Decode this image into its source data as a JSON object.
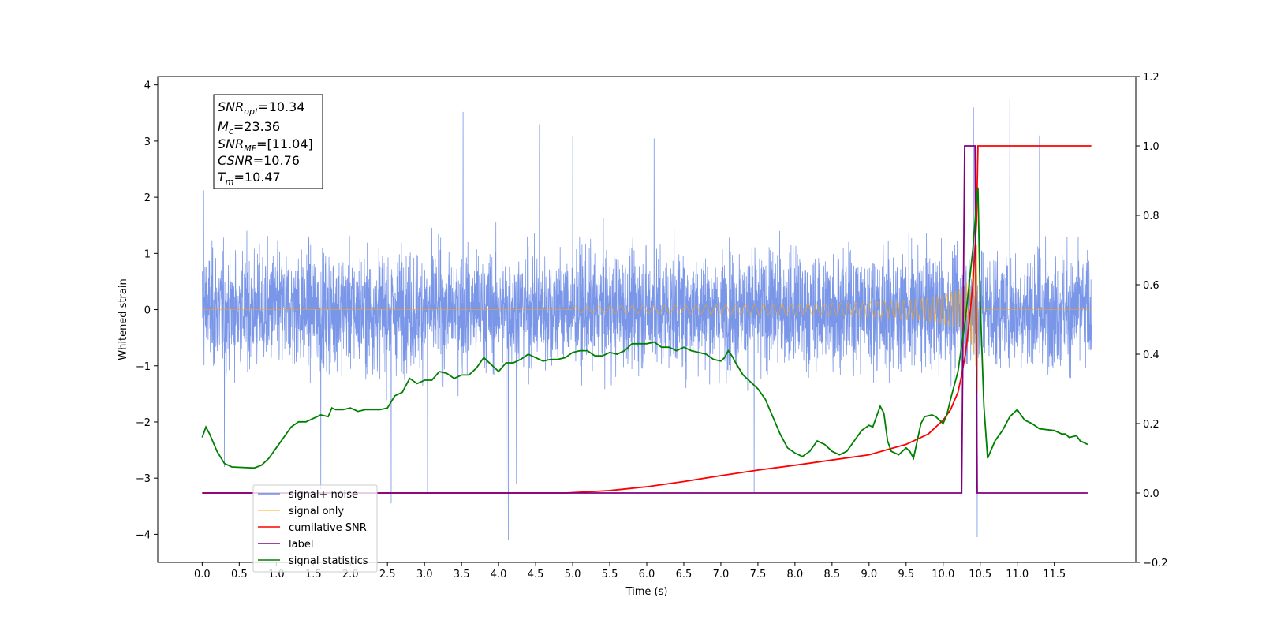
{
  "chart_data": {
    "type": "line",
    "xlabel": "Time (s)",
    "ylabel_left": "Whitened strain",
    "x_range": [
      -0.6,
      12.6
    ],
    "x_ticks": [
      0.0,
      0.5,
      1.0,
      1.5,
      2.0,
      2.5,
      3.0,
      3.5,
      4.0,
      4.5,
      5.0,
      5.5,
      6.0,
      6.5,
      7.0,
      7.5,
      8.0,
      8.5,
      9.0,
      9.5,
      10.0,
      10.5,
      11.0,
      11.5
    ],
    "x_tick_labels": [
      "0.0",
      "0.5",
      "1.0",
      "1.5",
      "2.0",
      "2.5",
      "3.0",
      "3.5",
      "4.0",
      "4.5",
      "5.0",
      "5.5",
      "6.0",
      "6.5",
      "7.0",
      "7.5",
      "8.0",
      "8.5",
      "9.0",
      "9.5",
      "10.0",
      "10.5",
      "11.0",
      "11.5"
    ],
    "y_left_range": [
      -4.5,
      4.15
    ],
    "y_left_ticks": [
      4,
      3,
      2,
      1,
      0,
      -1,
      -2,
      -3,
      -4
    ],
    "y_left_tick_labels": [
      "4",
      "3",
      "2",
      "1",
      "0",
      "−1",
      "−2",
      "−3",
      "−4"
    ],
    "y_right_range": [
      -0.2,
      1.2
    ],
    "y_right_ticks": [
      1.2,
      1.0,
      0.8,
      0.6,
      0.4,
      0.2,
      0.0,
      -0.2
    ],
    "y_right_tick_labels": [
      "1.2",
      "1.0",
      "0.8",
      "0.6",
      "0.4",
      "0.2",
      "0.0",
      "−0.2"
    ],
    "grid": false,
    "legend_position": "lower-left",
    "annotation": {
      "snr_opt_label": "SNR",
      "snr_opt_sub": "opt",
      "snr_opt_value": "=10.34",
      "mc_label": "M",
      "mc_sub": "c",
      "mc_value": "=23.36",
      "snr_mf_label": "SNR",
      "snr_mf_sub": "MF",
      "snr_mf_value": "=[11.04]",
      "csnr_label": "CSNR",
      "csnr_value": "=10.76",
      "tm_label": "T",
      "tm_sub": "m",
      "tm_value": "=10.47"
    },
    "series": [
      {
        "name": "signal+ noise",
        "color": "#6b8be6",
        "axis": "left",
        "t_start": 0.0,
        "t_end": 12.0,
        "typical_range": [
          -1.8,
          1.8
        ],
        "spikes": [
          {
            "x": 0.02,
            "y": -3.5
          },
          {
            "x": 0.02,
            "y": 2.12
          },
          {
            "x": 0.3,
            "y": -2.8
          },
          {
            "x": 1.6,
            "y": -3.2
          },
          {
            "x": 2.55,
            "y": -3.45
          },
          {
            "x": 3.04,
            "y": -3.25
          },
          {
            "x": 3.52,
            "y": 3.52
          },
          {
            "x": 4.1,
            "y": -3.95
          },
          {
            "x": 4.13,
            "y": -4.1
          },
          {
            "x": 4.24,
            "y": -3.1
          },
          {
            "x": 4.55,
            "y": 3.3
          },
          {
            "x": 5.0,
            "y": 3.1
          },
          {
            "x": 6.1,
            "y": 3.05
          },
          {
            "x": 7.45,
            "y": -3.25
          },
          {
            "x": 10.41,
            "y": 3.6
          },
          {
            "x": 10.46,
            "y": -4.05
          },
          {
            "x": 10.9,
            "y": 3.75
          },
          {
            "x": 11.3,
            "y": 3.1
          }
        ]
      },
      {
        "name": "signal only",
        "color": "#ffa500",
        "axis": "left",
        "chirp_start": 5.0,
        "chirp_end": 10.47,
        "peak_amplitude": 1.75
      },
      {
        "name": "cumilative SNR",
        "color": "#ff0000",
        "axis": "right",
        "points": [
          [
            0.0,
            0.0
          ],
          [
            4.9,
            0.0
          ],
          [
            5.5,
            0.007
          ],
          [
            6.0,
            0.018
          ],
          [
            6.5,
            0.033
          ],
          [
            7.0,
            0.05
          ],
          [
            7.5,
            0.066
          ],
          [
            8.0,
            0.08
          ],
          [
            8.5,
            0.095
          ],
          [
            9.0,
            0.11
          ],
          [
            9.5,
            0.14
          ],
          [
            9.8,
            0.17
          ],
          [
            10.0,
            0.21
          ],
          [
            10.1,
            0.24
          ],
          [
            10.2,
            0.29
          ],
          [
            10.25,
            0.34
          ],
          [
            10.3,
            0.4
          ],
          [
            10.35,
            0.49
          ],
          [
            10.4,
            0.6
          ],
          [
            10.45,
            0.78
          ],
          [
            10.47,
            1.0
          ],
          [
            12.0,
            1.0
          ]
        ]
      },
      {
        "name": "label",
        "color": "#800080",
        "axis": "right",
        "points": [
          [
            0.0,
            0.0
          ],
          [
            10.25,
            0.0
          ],
          [
            10.29,
            1.0
          ],
          [
            10.43,
            1.0
          ],
          [
            10.46,
            0.0
          ],
          [
            11.95,
            0.0
          ]
        ]
      },
      {
        "name": "signal statistics",
        "color": "#008000",
        "axis": "right",
        "points": [
          [
            0.0,
            0.16
          ],
          [
            0.05,
            0.19
          ],
          [
            0.1,
            0.17
          ],
          [
            0.2,
            0.12
          ],
          [
            0.3,
            0.085
          ],
          [
            0.4,
            0.075
          ],
          [
            0.6,
            0.073
          ],
          [
            0.7,
            0.072
          ],
          [
            0.8,
            0.08
          ],
          [
            0.9,
            0.1
          ],
          [
            1.0,
            0.13
          ],
          [
            1.1,
            0.16
          ],
          [
            1.2,
            0.19
          ],
          [
            1.3,
            0.205
          ],
          [
            1.4,
            0.205
          ],
          [
            1.5,
            0.215
          ],
          [
            1.6,
            0.225
          ],
          [
            1.7,
            0.22
          ],
          [
            1.75,
            0.245
          ],
          [
            1.8,
            0.24
          ],
          [
            1.9,
            0.24
          ],
          [
            2.0,
            0.245
          ],
          [
            2.1,
            0.235
          ],
          [
            2.2,
            0.24
          ],
          [
            2.4,
            0.24
          ],
          [
            2.5,
            0.245
          ],
          [
            2.6,
            0.28
          ],
          [
            2.7,
            0.29
          ],
          [
            2.8,
            0.33
          ],
          [
            2.9,
            0.315
          ],
          [
            3.0,
            0.325
          ],
          [
            3.1,
            0.325
          ],
          [
            3.2,
            0.35
          ],
          [
            3.3,
            0.345
          ],
          [
            3.4,
            0.33
          ],
          [
            3.5,
            0.34
          ],
          [
            3.6,
            0.34
          ],
          [
            3.7,
            0.36
          ],
          [
            3.8,
            0.39
          ],
          [
            3.9,
            0.37
          ],
          [
            4.0,
            0.35
          ],
          [
            4.1,
            0.375
          ],
          [
            4.2,
            0.375
          ],
          [
            4.3,
            0.385
          ],
          [
            4.4,
            0.4
          ],
          [
            4.5,
            0.39
          ],
          [
            4.6,
            0.38
          ],
          [
            4.7,
            0.385
          ],
          [
            4.8,
            0.385
          ],
          [
            4.9,
            0.39
          ],
          [
            5.0,
            0.405
          ],
          [
            5.1,
            0.41
          ],
          [
            5.2,
            0.41
          ],
          [
            5.3,
            0.395
          ],
          [
            5.4,
            0.395
          ],
          [
            5.5,
            0.405
          ],
          [
            5.6,
            0.4
          ],
          [
            5.7,
            0.41
          ],
          [
            5.8,
            0.43
          ],
          [
            5.9,
            0.43
          ],
          [
            6.0,
            0.43
          ],
          [
            6.1,
            0.435
          ],
          [
            6.2,
            0.42
          ],
          [
            6.3,
            0.42
          ],
          [
            6.4,
            0.41
          ],
          [
            6.5,
            0.42
          ],
          [
            6.6,
            0.41
          ],
          [
            6.7,
            0.405
          ],
          [
            6.8,
            0.4
          ],
          [
            6.9,
            0.385
          ],
          [
            7.0,
            0.38
          ],
          [
            7.05,
            0.39
          ],
          [
            7.1,
            0.41
          ],
          [
            7.15,
            0.395
          ],
          [
            7.2,
            0.375
          ],
          [
            7.3,
            0.34
          ],
          [
            7.4,
            0.32
          ],
          [
            7.5,
            0.3
          ],
          [
            7.6,
            0.27
          ],
          [
            7.7,
            0.22
          ],
          [
            7.8,
            0.17
          ],
          [
            7.9,
            0.13
          ],
          [
            8.0,
            0.115
          ],
          [
            8.1,
            0.105
          ],
          [
            8.2,
            0.12
          ],
          [
            8.3,
            0.15
          ],
          [
            8.4,
            0.14
          ],
          [
            8.5,
            0.12
          ],
          [
            8.6,
            0.11
          ],
          [
            8.7,
            0.12
          ],
          [
            8.8,
            0.15
          ],
          [
            8.9,
            0.18
          ],
          [
            9.0,
            0.195
          ],
          [
            9.05,
            0.19
          ],
          [
            9.1,
            0.22
          ],
          [
            9.15,
            0.25
          ],
          [
            9.2,
            0.23
          ],
          [
            9.25,
            0.15
          ],
          [
            9.3,
            0.12
          ],
          [
            9.4,
            0.11
          ],
          [
            9.5,
            0.13
          ],
          [
            9.55,
            0.12
          ],
          [
            9.6,
            0.1
          ],
          [
            9.65,
            0.15
          ],
          [
            9.7,
            0.2
          ],
          [
            9.75,
            0.22
          ],
          [
            9.85,
            0.225
          ],
          [
            9.9,
            0.22
          ],
          [
            10.0,
            0.2
          ],
          [
            10.05,
            0.225
          ],
          [
            10.1,
            0.27
          ],
          [
            10.2,
            0.35
          ],
          [
            10.3,
            0.5
          ],
          [
            10.35,
            0.6
          ],
          [
            10.4,
            0.7
          ],
          [
            10.43,
            0.78
          ],
          [
            10.45,
            0.84
          ],
          [
            10.47,
            0.88
          ],
          [
            10.5,
            0.55
          ],
          [
            10.55,
            0.25
          ],
          [
            10.6,
            0.1
          ],
          [
            10.7,
            0.15
          ],
          [
            10.8,
            0.18
          ],
          [
            10.9,
            0.22
          ],
          [
            11.0,
            0.24
          ],
          [
            11.1,
            0.21
          ],
          [
            11.2,
            0.2
          ],
          [
            11.3,
            0.185
          ],
          [
            11.5,
            0.18
          ],
          [
            11.6,
            0.17
          ],
          [
            11.65,
            0.17
          ],
          [
            11.7,
            0.16
          ],
          [
            11.8,
            0.165
          ],
          [
            11.85,
            0.15
          ],
          [
            11.95,
            0.14
          ]
        ]
      }
    ]
  }
}
